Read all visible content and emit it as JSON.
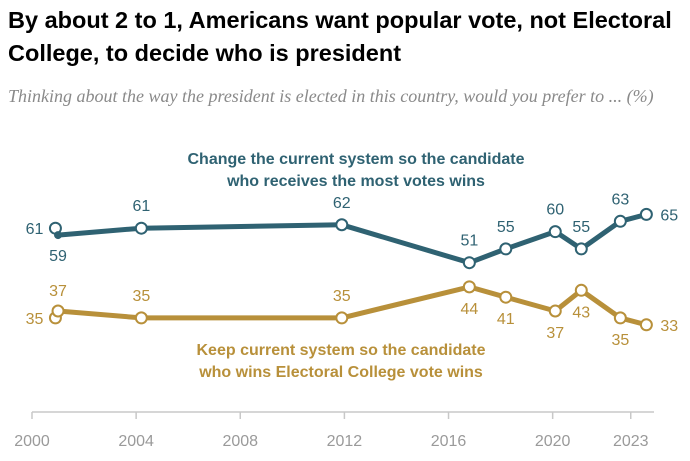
{
  "title": "By about 2 to 1, Americans want popular vote, not Electoral College, to decide who is president",
  "subtitle": "Thinking about the way the president is elected in this country, would you prefer to ... (%)",
  "colors": {
    "popular": "#2f6272",
    "electoral": "#b8903a",
    "axis": "#c8c8c8",
    "tick": "#9a9a9a"
  },
  "chart_data": {
    "type": "line",
    "x_ticks": [
      2000,
      2004,
      2008,
      2012,
      2016,
      2020,
      2023
    ],
    "xlim": [
      2000,
      2024.2
    ],
    "ylim": [
      30,
      70
    ],
    "grid": false,
    "series": [
      {
        "key": "popular",
        "name_lines": [
          "Change the current system so the candidate",
          "who receives the most votes wins"
        ],
        "x": [
          2000.9,
          2001.0,
          2004.2,
          2011.9,
          2016.8,
          2018.2,
          2020.1,
          2021.1,
          2022.6,
          2023.6
        ],
        "values": [
          61,
          59,
          61,
          62,
          51,
          55,
          60,
          55,
          63,
          65
        ],
        "open": [
          true,
          false,
          true,
          true,
          true,
          true,
          true,
          true,
          true,
          true
        ]
      },
      {
        "key": "electoral",
        "name_lines": [
          "Keep current system so the candidate",
          "who wins Electoral College vote wins"
        ],
        "x": [
          2000.9,
          2001.0,
          2004.2,
          2011.9,
          2016.8,
          2018.2,
          2020.1,
          2021.1,
          2022.6,
          2023.6
        ],
        "values": [
          35,
          37,
          35,
          35,
          44,
          41,
          37,
          43,
          35,
          33
        ],
        "open": [
          true,
          true,
          true,
          true,
          true,
          true,
          true,
          true,
          true,
          true
        ]
      }
    ]
  }
}
